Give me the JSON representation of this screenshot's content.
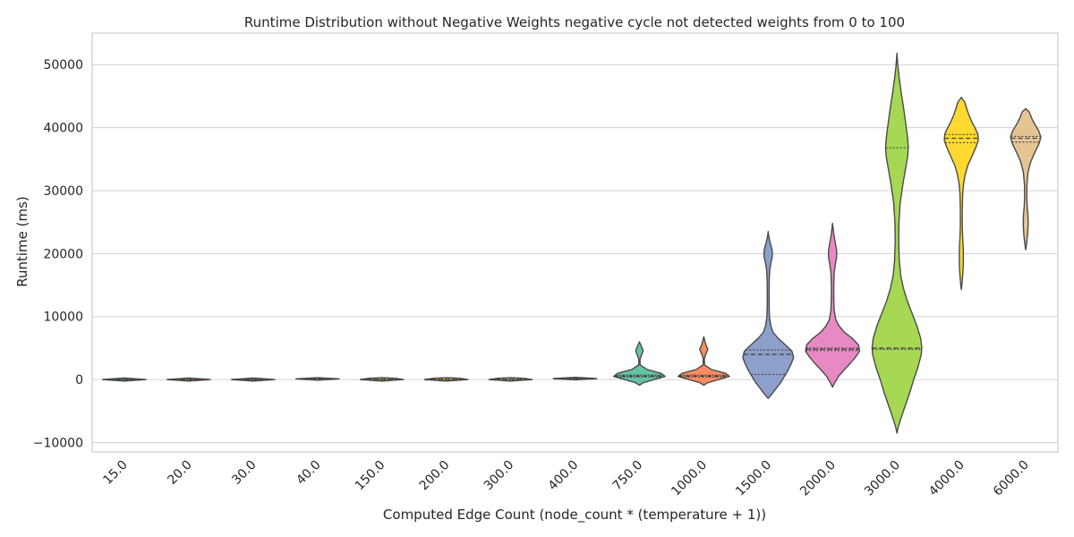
{
  "chart_data": {
    "type": "violin",
    "title": "Runtime Distribution without Negative Weights negative cycle not detected weights from 0 to 100",
    "xlabel": "Computed Edge Count (node_count * (temperature + 1))",
    "ylabel": "Runtime (ms)",
    "ylim": [
      -11500,
      55000
    ],
    "yticks": [
      -10000,
      0,
      10000,
      20000,
      30000,
      40000,
      50000
    ],
    "ytick_labels": [
      "−10000",
      "0",
      "10000",
      "20000",
      "30000",
      "40000",
      "50000"
    ],
    "grid": true,
    "inner": "quartile",
    "categories": [
      "15.0",
      "20.0",
      "30.0",
      "40.0",
      "150.0",
      "200.0",
      "300.0",
      "400.0",
      "750.0",
      "1000.0",
      "1500.0",
      "2000.0",
      "3000.0",
      "4000.0",
      "6000.0"
    ],
    "colors": [
      "#66c2a5",
      "#fc8d62",
      "#8da0cb",
      "#e78ac3",
      "#a6d854",
      "#ffd92f",
      "#e5c494",
      "#b3b3b3"
    ],
    "violins": [
      {
        "category": "15.0",
        "quartiles": [
          -60,
          0,
          60
        ],
        "profile": [
          [
            -250,
            0
          ],
          [
            0,
            0.8
          ],
          [
            250,
            0
          ]
        ]
      },
      {
        "category": "20.0",
        "quartiles": [
          -60,
          0,
          60
        ],
        "profile": [
          [
            -250,
            0
          ],
          [
            0,
            0.8
          ],
          [
            250,
            0
          ]
        ]
      },
      {
        "category": "30.0",
        "quartiles": [
          -60,
          0,
          60
        ],
        "profile": [
          [
            -250,
            0
          ],
          [
            0,
            0.8
          ],
          [
            250,
            0
          ]
        ]
      },
      {
        "category": "40.0",
        "quartiles": [
          60,
          100,
          140
        ],
        "profile": [
          [
            -100,
            0
          ],
          [
            100,
            0.8
          ],
          [
            300,
            0
          ]
        ]
      },
      {
        "category": "150.0",
        "quartiles": [
          -60,
          0,
          60
        ],
        "profile": [
          [
            -250,
            0
          ],
          [
            0,
            0.8
          ],
          [
            200,
            0.5
          ],
          [
            300,
            0
          ]
        ]
      },
      {
        "category": "200.0",
        "quartiles": [
          -60,
          0,
          60
        ],
        "profile": [
          [
            -250,
            0
          ],
          [
            0,
            0.8
          ],
          [
            200,
            0.5
          ],
          [
            300,
            0
          ]
        ]
      },
      {
        "category": "300.0",
        "quartiles": [
          -60,
          0,
          60
        ],
        "profile": [
          [
            -250,
            0
          ],
          [
            0,
            0.8
          ],
          [
            200,
            0.5
          ],
          [
            300,
            0
          ]
        ]
      },
      {
        "category": "400.0",
        "quartiles": [
          100,
          150,
          200
        ],
        "profile": [
          [
            -50,
            0
          ],
          [
            150,
            0.8
          ],
          [
            350,
            0
          ]
        ]
      },
      {
        "category": "750.0",
        "quartiles": [
          400,
          550,
          700
        ],
        "profile": [
          [
            -900,
            0
          ],
          [
            -500,
            0.15
          ],
          [
            0,
            0.55
          ],
          [
            500,
            0.95
          ],
          [
            1000,
            0.8
          ],
          [
            1600,
            0.28
          ],
          [
            2300,
            0.03
          ],
          [
            3200,
            0.02
          ],
          [
            3900,
            0.08
          ],
          [
            4600,
            0.14
          ],
          [
            5300,
            0.07
          ],
          [
            6000,
            0
          ]
        ]
      },
      {
        "category": "1000.0",
        "quartiles": [
          400,
          550,
          700
        ],
        "profile": [
          [
            -900,
            0
          ],
          [
            -500,
            0.15
          ],
          [
            0,
            0.55
          ],
          [
            500,
            0.95
          ],
          [
            1000,
            0.8
          ],
          [
            1600,
            0.28
          ],
          [
            2300,
            0.03
          ],
          [
            3300,
            0.02
          ],
          [
            4000,
            0.07
          ],
          [
            4800,
            0.15
          ],
          [
            5600,
            0.07
          ],
          [
            6800,
            0
          ]
        ]
      },
      {
        "category": "1500.0",
        "quartiles": [
          800,
          4000,
          4700
        ],
        "profile": [
          [
            -3000,
            0
          ],
          [
            -2500,
            0.1
          ],
          [
            -1500,
            0.28
          ],
          [
            -500,
            0.46
          ],
          [
            500,
            0.6
          ],
          [
            1500,
            0.74
          ],
          [
            2500,
            0.85
          ],
          [
            3500,
            0.94
          ],
          [
            4500,
            0.88
          ],
          [
            5500,
            0.64
          ],
          [
            6500,
            0.38
          ],
          [
            7500,
            0.18
          ],
          [
            8500,
            0.1
          ],
          [
            10000,
            0.045
          ],
          [
            12000,
            0.035
          ],
          [
            14000,
            0.035
          ],
          [
            16000,
            0.04
          ],
          [
            17500,
            0.06
          ],
          [
            18500,
            0.1
          ],
          [
            19500,
            0.15
          ],
          [
            20500,
            0.15
          ],
          [
            21500,
            0.09
          ],
          [
            22500,
            0.03
          ],
          [
            23500,
            0
          ]
        ]
      },
      {
        "category": "2000.0",
        "quartiles": [
          4600,
          4800,
          5000
        ],
        "profile": [
          [
            -1200,
            0
          ],
          [
            -500,
            0.08
          ],
          [
            500,
            0.22
          ],
          [
            1500,
            0.42
          ],
          [
            2500,
            0.64
          ],
          [
            3500,
            0.84
          ],
          [
            4500,
            1.0
          ],
          [
            5500,
            0.96
          ],
          [
            6500,
            0.74
          ],
          [
            7500,
            0.44
          ],
          [
            8500,
            0.24
          ],
          [
            9500,
            0.12
          ],
          [
            11000,
            0.06
          ],
          [
            13000,
            0.045
          ],
          [
            15000,
            0.045
          ],
          [
            17000,
            0.06
          ],
          [
            18500,
            0.11
          ],
          [
            19500,
            0.15
          ],
          [
            20500,
            0.15
          ],
          [
            21500,
            0.11
          ],
          [
            23000,
            0.05
          ],
          [
            24800,
            0
          ]
        ]
      },
      {
        "category": "3000.0",
        "quartiles": [
          4800,
          5000,
          36800
        ],
        "profile": [
          [
            -8500,
            0
          ],
          [
            -7500,
            0.05
          ],
          [
            -6000,
            0.16
          ],
          [
            -4000,
            0.32
          ],
          [
            -2000,
            0.48
          ],
          [
            0,
            0.62
          ],
          [
            2000,
            0.78
          ],
          [
            4000,
            0.9
          ],
          [
            5000,
            0.92
          ],
          [
            6500,
            0.88
          ],
          [
            8500,
            0.74
          ],
          [
            10500,
            0.56
          ],
          [
            12500,
            0.38
          ],
          [
            14500,
            0.24
          ],
          [
            16500,
            0.14
          ],
          [
            19000,
            0.085
          ],
          [
            22000,
            0.065
          ],
          [
            25000,
            0.075
          ],
          [
            28000,
            0.12
          ],
          [
            31000,
            0.22
          ],
          [
            33500,
            0.32
          ],
          [
            35500,
            0.4
          ],
          [
            37000,
            0.42
          ],
          [
            38500,
            0.39
          ],
          [
            40500,
            0.33
          ],
          [
            43000,
            0.25
          ],
          [
            45500,
            0.16
          ],
          [
            48000,
            0.08
          ],
          [
            50000,
            0.03
          ],
          [
            51800,
            0
          ]
        ]
      },
      {
        "category": "4000.0",
        "quartiles": [
          37600,
          38300,
          38900
        ],
        "profile": [
          [
            14300,
            0
          ],
          [
            15000,
            0.02
          ],
          [
            16500,
            0.05
          ],
          [
            18000,
            0.07
          ],
          [
            19500,
            0.075
          ],
          [
            21000,
            0.07
          ],
          [
            22500,
            0.05
          ],
          [
            24500,
            0.035
          ],
          [
            27000,
            0.035
          ],
          [
            29500,
            0.05
          ],
          [
            31000,
            0.08
          ],
          [
            32500,
            0.14
          ],
          [
            34000,
            0.24
          ],
          [
            35500,
            0.4
          ],
          [
            37000,
            0.55
          ],
          [
            38000,
            0.63
          ],
          [
            39000,
            0.61
          ],
          [
            40000,
            0.5
          ],
          [
            41000,
            0.38
          ],
          [
            42000,
            0.28
          ],
          [
            43000,
            0.2
          ],
          [
            44000,
            0.13
          ],
          [
            44800,
            0
          ]
        ]
      },
      {
        "category": "6000.0",
        "quartiles": [
          37700,
          38300,
          38600
        ],
        "profile": [
          [
            20600,
            0
          ],
          [
            21500,
            0.03
          ],
          [
            23000,
            0.07
          ],
          [
            24500,
            0.09
          ],
          [
            26000,
            0.085
          ],
          [
            27500,
            0.055
          ],
          [
            29000,
            0.04
          ],
          [
            31000,
            0.045
          ],
          [
            33000,
            0.09
          ],
          [
            34500,
            0.18
          ],
          [
            36000,
            0.33
          ],
          [
            37500,
            0.5
          ],
          [
            38500,
            0.56
          ],
          [
            39500,
            0.48
          ],
          [
            40500,
            0.34
          ],
          [
            41500,
            0.22
          ],
          [
            42500,
            0.13
          ],
          [
            43000,
            0
          ]
        ]
      }
    ]
  }
}
